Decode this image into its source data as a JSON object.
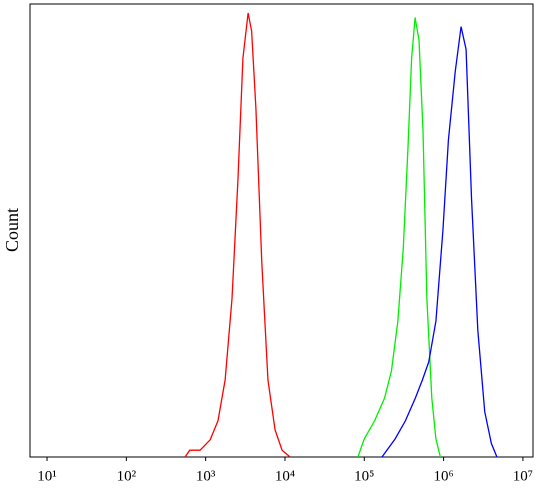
{
  "chart_data": {
    "type": "line",
    "y_label": "Count",
    "x_scale": "log",
    "xlim": [
      6.1,
      13400000
    ],
    "ylim": [
      0,
      100
    ],
    "xticks": [
      {
        "value": 10,
        "label": "10¹"
      },
      {
        "value": 100,
        "label": "10²"
      },
      {
        "value": 1000,
        "label": "10³"
      },
      {
        "value": 10000,
        "label": "10⁴"
      },
      {
        "value": 100000,
        "label": "10⁵"
      },
      {
        "value": 1000000,
        "label": "10⁶"
      },
      {
        "value": 10000000,
        "label": "10⁷"
      }
    ],
    "series": [
      {
        "color": "#ff0000",
        "x": [
          550,
          630,
          850,
          1140,
          1430,
          1760,
          2150,
          2550,
          2950,
          3430,
          3800,
          4300,
          5100,
          6100,
          7500,
          9200,
          11600
        ],
        "values": [
          0,
          1.5,
          1.5,
          3.8,
          8,
          17,
          35,
          61,
          88,
          98,
          94,
          77,
          43,
          17,
          6,
          1.5,
          0
        ]
      },
      {
        "color": "#00ee00",
        "x": [
          83000,
          100000,
          135000,
          180000,
          220000,
          265000,
          310000,
          355000,
          395000,
          437000,
          490000,
          550000,
          615000,
          710000,
          800000,
          910000
        ],
        "values": [
          0,
          4,
          8,
          13,
          19,
          30,
          46,
          68,
          88,
          97,
          92,
          72,
          35,
          13,
          4,
          0
        ]
      },
      {
        "color": "#0000ff",
        "x": [
          167000,
          245000,
          330000,
          440000,
          540000,
          650000,
          800000,
          980000,
          1150000,
          1400000,
          1660000,
          1920000,
          2250000,
          2700000,
          3300000,
          4000000,
          4700000
        ],
        "values": [
          0,
          4,
          8,
          13,
          17,
          21,
          30,
          50,
          70,
          85,
          95,
          90,
          57,
          28,
          10,
          3,
          0
        ]
      }
    ]
  }
}
